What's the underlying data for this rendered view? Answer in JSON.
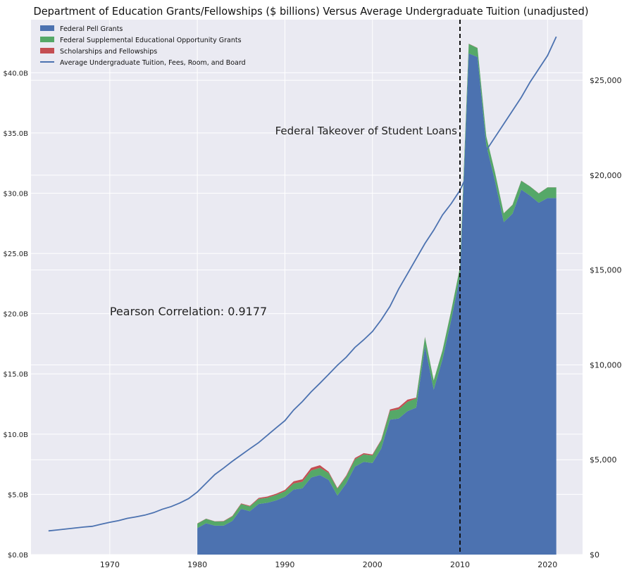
{
  "chart_data": {
    "type": "area",
    "title": "Department of Education Grants/Fellowships ($ billions) Versus Average Undergraduate Tuition (unadjusted)",
    "xlabel": "",
    "ylabel": "",
    "y2label": "",
    "xlim": [
      1961,
      2024
    ],
    "ylim": [
      0,
      44.4
    ],
    "y2lim": [
      0,
      28193
    ],
    "grid": true,
    "legend_position": "top-left",
    "xticks": [
      1970,
      1980,
      1990,
      2000,
      2010,
      2020
    ],
    "xtick_labels": [
      "1970",
      "1980",
      "1990",
      "2000",
      "2010",
      "2020"
    ],
    "yticks": [
      0,
      5,
      10,
      15,
      20,
      25,
      30,
      35,
      40
    ],
    "ytick_labels": [
      "$0.0B",
      "$5.0B",
      "$10.0B",
      "$15.0B",
      "$20.0B",
      "$25.0B",
      "$30.0B",
      "$35.0B",
      "$40.0B"
    ],
    "y2ticks": [
      0,
      5000,
      10000,
      15000,
      20000,
      25000
    ],
    "y2tick_labels": [
      "$0",
      "$5,000",
      "$10,000",
      "$15,000",
      "$20,000",
      "$25,000"
    ],
    "stacked_series": [
      {
        "name": "Federal Pell Grants",
        "color": "#4c72b0",
        "x": [
          1980,
          1981,
          1982,
          1983,
          1984,
          1985,
          1986,
          1987,
          1988,
          1989,
          1990,
          1991,
          1992,
          1993,
          1994,
          1995,
          1996,
          1997,
          1998,
          1999,
          2000,
          2001,
          2002,
          2003,
          2004,
          2005,
          2006,
          2007,
          2008,
          2009,
          2010,
          2011,
          2012,
          2013,
          2014,
          2015,
          2016,
          2017,
          2018,
          2019,
          2020,
          2021
        ],
        "values": [
          2.2,
          2.6,
          2.4,
          2.4,
          2.8,
          3.8,
          3.6,
          4.2,
          4.3,
          4.5,
          4.8,
          5.4,
          5.5,
          6.4,
          6.6,
          6.2,
          4.9,
          5.9,
          7.3,
          7.7,
          7.6,
          8.8,
          11.2,
          11.3,
          11.9,
          12.2,
          17.3,
          13.7,
          16.2,
          19.5,
          23.1,
          41.6,
          41.3,
          34.0,
          31.0,
          27.6,
          28.3,
          30.3,
          29.8,
          29.2,
          29.6,
          29.6
        ]
      },
      {
        "name": "Federal Supplemental Educational Opportunity Grants",
        "color": "#55a868",
        "x": [
          1980,
          1981,
          1982,
          1983,
          1984,
          1985,
          1986,
          1987,
          1988,
          1989,
          1990,
          1991,
          1992,
          1993,
          1994,
          1995,
          1996,
          1997,
          1998,
          1999,
          2000,
          2001,
          2002,
          2003,
          2004,
          2005,
          2006,
          2007,
          2008,
          2009,
          2010,
          2011,
          2012,
          2013,
          2014,
          2015,
          2016,
          2017,
          2018,
          2019,
          2020,
          2021
        ],
        "values": [
          0.37,
          0.37,
          0.35,
          0.36,
          0.38,
          0.4,
          0.4,
          0.42,
          0.42,
          0.45,
          0.45,
          0.5,
          0.55,
          0.58,
          0.6,
          0.58,
          0.58,
          0.58,
          0.6,
          0.62,
          0.63,
          0.68,
          0.73,
          0.76,
          0.78,
          0.77,
          0.76,
          0.75,
          0.74,
          0.75,
          0.75,
          0.8,
          0.75,
          0.73,
          0.73,
          0.73,
          0.73,
          0.73,
          0.76,
          0.78,
          0.88,
          0.88
        ]
      },
      {
        "name": "Scholarships and Fellowships",
        "color": "#c44e52",
        "x": [
          1980,
          1981,
          1982,
          1983,
          1984,
          1985,
          1986,
          1987,
          1988,
          1989,
          1990,
          1991,
          1992,
          1993,
          1994,
          1995,
          1996,
          1997,
          1998,
          1999,
          2000,
          2001,
          2002,
          2003,
          2004,
          2005,
          2006,
          2007,
          2008,
          2009,
          2010,
          2011,
          2012,
          2013,
          2014,
          2015,
          2016,
          2017,
          2018,
          2019,
          2020,
          2021
        ],
        "values": [
          0.02,
          0.02,
          0.02,
          0.03,
          0.03,
          0.05,
          0.05,
          0.08,
          0.1,
          0.1,
          0.12,
          0.18,
          0.2,
          0.22,
          0.22,
          0.1,
          0.05,
          0.08,
          0.12,
          0.1,
          0.08,
          0.06,
          0.12,
          0.17,
          0.18,
          0.06,
          0.02,
          0.02,
          0.02,
          0.02,
          0.01,
          0.01,
          0.01,
          0.01,
          0.01,
          0.01,
          0.01,
          0.01,
          0.01,
          0.01,
          0.01,
          0.01
        ]
      }
    ],
    "line_series": {
      "name": "Average Undergraduate Tuition, Fees, Room, and Board",
      "color": "#4c72b0",
      "axis": "right",
      "x": [
        1963,
        1964,
        1965,
        1966,
        1967,
        1968,
        1969,
        1970,
        1971,
        1972,
        1973,
        1974,
        1975,
        1976,
        1977,
        1978,
        1979,
        1980,
        1981,
        1982,
        1983,
        1984,
        1985,
        1986,
        1987,
        1988,
        1989,
        1990,
        1991,
        1992,
        1993,
        1994,
        1995,
        1996,
        1997,
        1998,
        1999,
        2000,
        2001,
        2002,
        2003,
        2004,
        2005,
        2006,
        2007,
        2008,
        2009,
        2010,
        2011,
        2012,
        2013,
        2014,
        2015,
        2016,
        2017,
        2018,
        2019,
        2020,
        2021
      ],
      "values": [
        1250,
        1300,
        1350,
        1400,
        1450,
        1490,
        1600,
        1700,
        1790,
        1910,
        1990,
        2080,
        2210,
        2390,
        2530,
        2720,
        2950,
        3300,
        3760,
        4220,
        4560,
        4920,
        5250,
        5580,
        5900,
        6290,
        6680,
        7060,
        7620,
        8070,
        8580,
        9030,
        9500,
        9980,
        10400,
        10920,
        11320,
        11760,
        12370,
        13080,
        14000,
        14800,
        15600,
        16400,
        17100,
        17900,
        18500,
        19200,
        20200,
        20000,
        21300,
        22000,
        22700,
        23400,
        24100,
        24900,
        25600,
        26300,
        27300
      ]
    },
    "annotations": [
      {
        "text": "Federal Takeover of Student Loans",
        "x": 2010,
        "type": "vertical-dashed-line"
      },
      {
        "text": "Pearson Correlation: 0.9177"
      }
    ]
  }
}
